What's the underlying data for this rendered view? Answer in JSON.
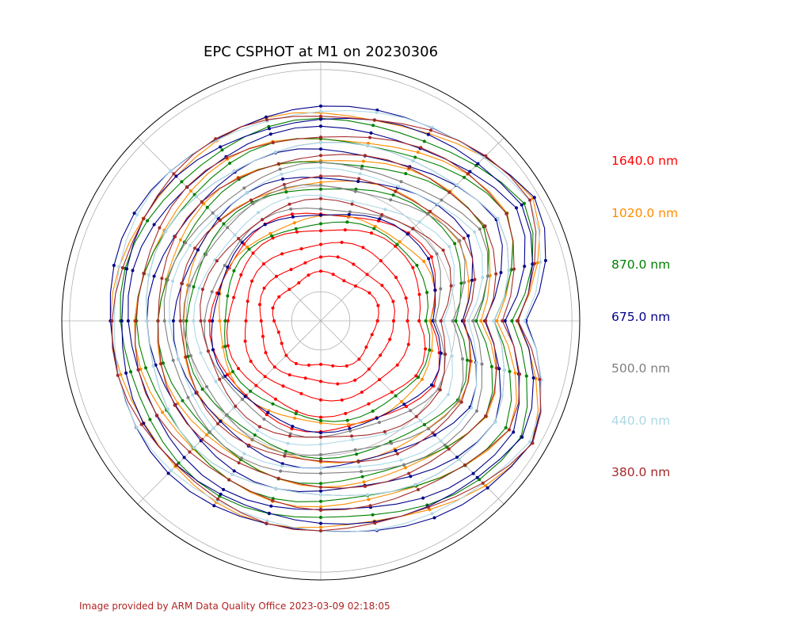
{
  "title": "EPC CSPHOT at M1 on 20230306",
  "footer": "Image provided by ARM Data Quality Office 2023-03-09 02:18:05",
  "chart_data": {
    "type": "polar",
    "grid": true,
    "radial_gridlines": 3,
    "angular_gridlines_deg": [
      0,
      45,
      90,
      135,
      180,
      225,
      270,
      315
    ],
    "legend_placement": "right",
    "series": [
      {
        "name": "1640.0 nm",
        "color": "#ff0000",
        "rings": [
          0.18,
          0.24,
          0.3,
          0.36,
          0.42
        ]
      },
      {
        "name": "1020.0 nm",
        "color": "#ff8c00",
        "rings": [
          0.4,
          0.54,
          0.63,
          0.71,
          0.8
        ]
      },
      {
        "name": "870.0 nm",
        "color": "#008000",
        "rings": [
          0.38,
          0.52,
          0.62,
          0.7,
          0.77
        ]
      },
      {
        "name": "675.0 nm",
        "color": "#00008b",
        "rings": [
          0.42,
          0.56,
          0.66,
          0.74,
          0.82,
          0.78
        ]
      },
      {
        "name": "500.0 nm",
        "color": "#808080",
        "rings": [
          0.44,
          0.52,
          0.6,
          0.68
        ]
      },
      {
        "name": "440.0 nm",
        "color": "#add8e6",
        "rings": [
          0.48,
          0.58,
          0.68,
          0.81
        ]
      },
      {
        "name": "380.0 nm",
        "color": "#a52a2a",
        "rings": [
          0.46,
          0.55,
          0.64,
          0.72,
          0.8
        ]
      }
    ]
  }
}
